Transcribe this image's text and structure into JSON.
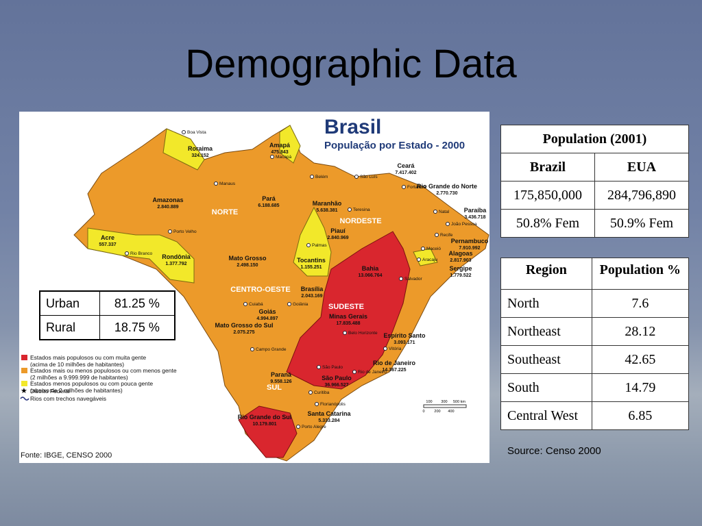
{
  "title": "Demographic Data",
  "map": {
    "title": "Brasil",
    "subtitle": "População por Estado - 2000",
    "regions": [
      "NORTE",
      "NORDESTE",
      "CENTRO-OESTE",
      "SUDESTE",
      "SUL"
    ],
    "states": [
      {
        "name": "Roraima",
        "population": "324.152",
        "capital": "Boa Vista"
      },
      {
        "name": "Amapá",
        "population": "475.843",
        "capital": "Macapá"
      },
      {
        "name": "Amazonas",
        "population": "2.840.889",
        "capital": "Manaus"
      },
      {
        "name": "Pará",
        "population": "6.188.685",
        "capital": "Belém"
      },
      {
        "name": "Maranhão",
        "population": "5.638.381",
        "capital": "São Luís"
      },
      {
        "name": "Ceará",
        "population": "7.417.402",
        "capital": "Fortaleza"
      },
      {
        "name": "Rio Grande do Norte",
        "population": "2.770.730",
        "capital": "Natal"
      },
      {
        "name": "Paraíba",
        "population": "3.436.718",
        "capital": "João Pessoa"
      },
      {
        "name": "Pernambuco",
        "population": "7.910.992",
        "capital": "Recife"
      },
      {
        "name": "Alagoas",
        "population": "2.817.903",
        "capital": "Maceió"
      },
      {
        "name": "Sergipe",
        "population": "1.779.522",
        "capital": "Aracaju"
      },
      {
        "name": "Piauí",
        "population": "2.840.969",
        "capital": "Teresina"
      },
      {
        "name": "Bahia",
        "population": "13.066.764",
        "capital": "Salvador"
      },
      {
        "name": "Tocantins",
        "population": "1.155.251",
        "capital": "Palmas"
      },
      {
        "name": "Acre",
        "population": "557.337",
        "capital": "Rio Branco"
      },
      {
        "name": "Rondônia",
        "population": "1.377.792",
        "capital": "Porto Velho"
      },
      {
        "name": "Mato Grosso",
        "population": "2.498.150",
        "capital": "Cuiabá"
      },
      {
        "name": "Goiás",
        "population": "4.994.897",
        "capital": "Goiânia"
      },
      {
        "name": "Brasília",
        "population": "2.043.169"
      },
      {
        "name": "Minas Gerais",
        "population": "17.835.488",
        "capital": "Belo Horizonte"
      },
      {
        "name": "Espírito Santo",
        "population": "3.093.171",
        "capital": "Vitória"
      },
      {
        "name": "Rio de Janeiro",
        "population": "14.367.225",
        "capital": "Rio de Janeiro"
      },
      {
        "name": "Mato Grosso do Sul",
        "population": "2.075.275",
        "capital": "Campo Grande"
      },
      {
        "name": "São Paulo",
        "population": "36.966.527",
        "capital": "São Paulo"
      },
      {
        "name": "Paraná",
        "population": "9.558.126",
        "capital": "Curitiba"
      },
      {
        "name": "Santa Catarina",
        "population": "5.333.284",
        "capital": "Florianópolis"
      },
      {
        "name": "Rio Grande do Sul",
        "population": "10.179.801",
        "capital": "Porto Alegre"
      }
    ],
    "legend": [
      {
        "text": "Estados mais populosos ou com muita gente",
        "note": "(acima de 10 milhões de habitantes)",
        "color": "#d9262e"
      },
      {
        "text": "Estados mais ou menos populosos ou com menos gente",
        "note": "(2 milhões a 9.999.999 de habitantes)",
        "color": "#ec9a2a"
      },
      {
        "text": "Estados menos populosos ou com pouca  gente",
        "note": "(abaixo de 2 milhões de habitantes)",
        "color": "#f2e82a"
      },
      {
        "text": "Distrito Federal"
      },
      {
        "text": "Rios com trechos navegáveis"
      }
    ],
    "scale_top": [
      "100",
      "300",
      "500 km"
    ],
    "scale_bottom": [
      "0",
      "200",
      "400"
    ],
    "source": "Fonte: IBGE, CENSO 2000"
  },
  "urban_rural": {
    "rows": [
      [
        "Urban",
        "81.25 %"
      ],
      [
        "Rural",
        "18.75 %"
      ]
    ]
  },
  "population_table": {
    "header": "Population (2001)",
    "columns": [
      "Brazil",
      "EUA"
    ],
    "rows": [
      [
        "175,850,000",
        "284,796,890"
      ],
      [
        "50.8% Fem",
        "50.9% Fem"
      ]
    ]
  },
  "region_table": {
    "columns": [
      "Region",
      "Population %"
    ],
    "rows": [
      [
        "North",
        "7.6"
      ],
      [
        "Northeast",
        "28.12"
      ],
      [
        "Southeast",
        "42.65"
      ],
      [
        "South",
        "14.79"
      ],
      [
        "Central West",
        "6.85"
      ]
    ]
  },
  "source": "Source: Censo 2000"
}
